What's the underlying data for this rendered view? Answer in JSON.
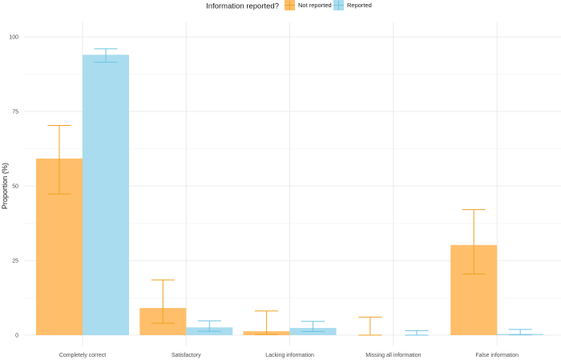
{
  "chart_data": {
    "type": "bar",
    "title": "",
    "xlabel": "",
    "ylabel": "Proportion (%)",
    "ylim": [
      0,
      100
    ],
    "yticks": [
      0,
      25,
      50,
      75,
      100
    ],
    "grid": true,
    "legend": {
      "title": "Information reported?",
      "placement": "top",
      "entries": [
        "Not reported",
        "Reported"
      ]
    },
    "categories": [
      "Completely correct",
      "Satisfactory",
      "Lacking information",
      "Missing all information",
      "False information"
    ],
    "series": [
      {
        "name": "Not reported",
        "color": "#ffbe6a",
        "error_color": "#f0a020",
        "values": [
          59.2,
          9.1,
          1.3,
          0.0,
          30.2
        ],
        "ci_low": [
          47.3,
          4.0,
          0.2,
          0.0,
          20.5
        ],
        "ci_high": [
          70.3,
          18.5,
          8.1,
          6.0,
          42.1
        ]
      },
      {
        "name": "Reported",
        "color": "#a9dcef",
        "error_color": "#6cc3e3",
        "values": [
          94.0,
          2.6,
          2.4,
          0.0,
          0.4
        ],
        "ci_low": [
          91.5,
          1.3,
          1.2,
          0.0,
          0.1
        ],
        "ci_high": [
          96.0,
          4.8,
          4.6,
          1.5,
          1.9
        ]
      }
    ]
  }
}
